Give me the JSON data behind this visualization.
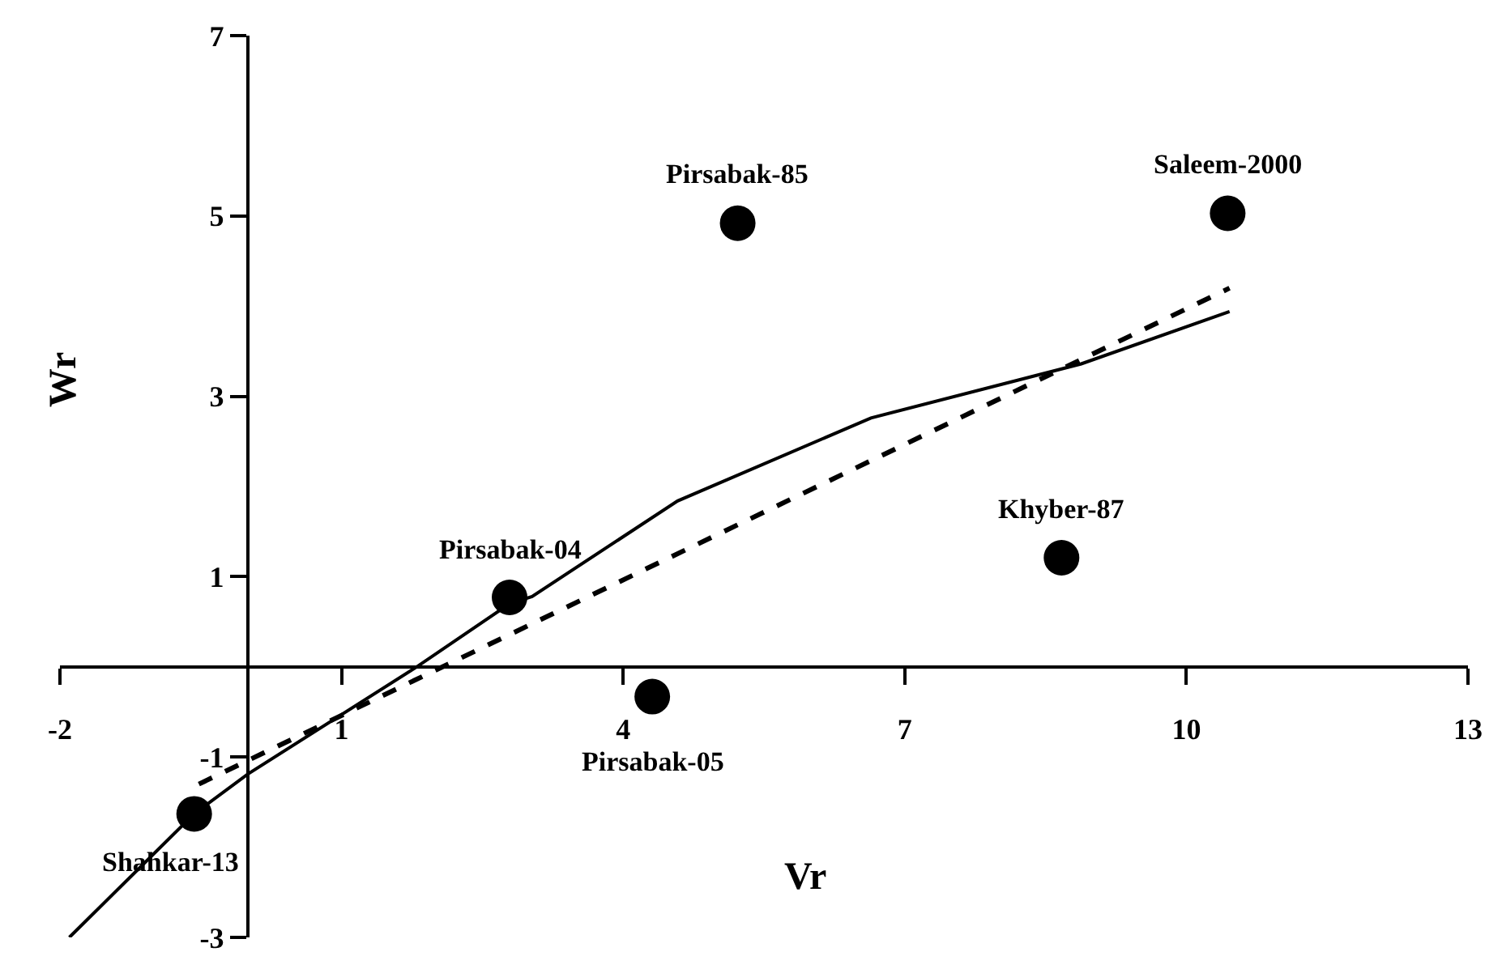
{
  "chart_data": {
    "type": "scatter",
    "xlabel": "Vr",
    "ylabel": "Wr",
    "xlim": [
      -2,
      13
    ],
    "xticks": [
      -2,
      1,
      4,
      7,
      10,
      13
    ],
    "ylim": [
      -3,
      7
    ],
    "yticks": [
      -3,
      -1,
      1,
      3,
      5,
      7
    ],
    "legend": false,
    "series": [
      {
        "color": "#000000",
        "marker": "circle",
        "x": [
          -0.57,
          2.79,
          4.31,
          5.22,
          10.44,
          8.67
        ],
        "values": [
          -1.63,
          0.77,
          -0.33,
          4.92,
          5.03,
          1.21
        ]
      },
      {
        "type": "line",
        "color": "#000000",
        "marker": "none",
        "line_style": "solid",
        "x": [
          -1.9,
          -0.57,
          0,
          1.8,
          2.79,
          3.03,
          4.58,
          6.64,
          8.88,
          10.46
        ],
        "values": [
          -3.0,
          -1.63,
          -1.19,
          0,
          0.7,
          0.78,
          1.84,
          2.76,
          3.36,
          3.94
        ]
      },
      {
        "type": "line",
        "color": "#000000",
        "marker": "none",
        "line_style": "dashed",
        "x": [
          -0.52,
          10.46
        ],
        "values": [
          -1.3,
          4.2
        ]
      }
    ],
    "annotations": [
      {
        "text": "Shahkar-13",
        "x": -0.57,
        "y": -1.63
      },
      {
        "text": "Pirsabak-04",
        "x": 2.79,
        "y": 0.77
      },
      {
        "text": "Pirsabak-05",
        "x": 4.31,
        "y": -0.33
      },
      {
        "text": "Pirsabak-85",
        "x": 5.22,
        "y": 4.92
      },
      {
        "text": "Saleem-2000",
        "x": 10.44,
        "y": 5.03
      },
      {
        "text": "Khyber-87",
        "x": 8.67,
        "y": 1.21
      }
    ]
  }
}
